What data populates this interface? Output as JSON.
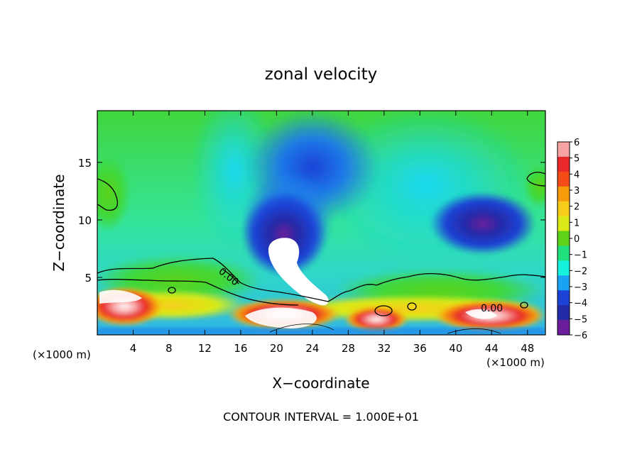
{
  "chart_data": {
    "type": "heatmap",
    "title": "zonal velocity",
    "xlabel": "X−coordinate",
    "ylabel": "Z−coordinate",
    "x_unit_label": "(×1000 m)",
    "x_unit_label_right": "(×1000 m)",
    "xlim": [
      0,
      50
    ],
    "ylim": [
      0,
      19.5
    ],
    "x_ticks": [
      4,
      8,
      12,
      16,
      20,
      24,
      28,
      32,
      36,
      40,
      44,
      48
    ],
    "y_ticks": [
      5,
      10,
      15
    ],
    "colorbar": {
      "range": [
        -6,
        6
      ],
      "levels": [
        6,
        5,
        4,
        3,
        2,
        1,
        0,
        -1,
        -2,
        -3,
        -4,
        -5,
        -6
      ],
      "tick_labels": [
        "6",
        "5",
        "4",
        "3",
        "2",
        "1",
        "0",
        "−1",
        "−2",
        "−3",
        "−4",
        "−5",
        "−6"
      ],
      "colors": [
        "#f7a3a3",
        "#e8282a",
        "#f44b18",
        "#f79a0b",
        "#f7cc1b",
        "#d9ea16",
        "#5ed119",
        "#1fe07c",
        "#17f2dd",
        "#19a3f2",
        "#1d43d6",
        "#232ba8",
        "#6b1e9b"
      ]
    },
    "contour_labels": [
      "0.00",
      "0.00"
    ],
    "footer": "CONTOUR INTERVAL = 1.000E+01",
    "features": [
      {
        "x": 21,
        "z": 9,
        "value": -6
      },
      {
        "x": 22,
        "z": 6.5,
        "value": -5
      },
      {
        "x": 43,
        "z": 10,
        "value": -5.5
      },
      {
        "x": 20,
        "z": 14,
        "value": -3.5
      },
      {
        "x": 2,
        "z": 3,
        "value": 5
      },
      {
        "x": 20,
        "z": 1.5,
        "value": 5
      },
      {
        "x": 45,
        "z": 1,
        "value": 4
      },
      {
        "x": 1.5,
        "z": 12.5,
        "value": 1
      }
    ]
  }
}
